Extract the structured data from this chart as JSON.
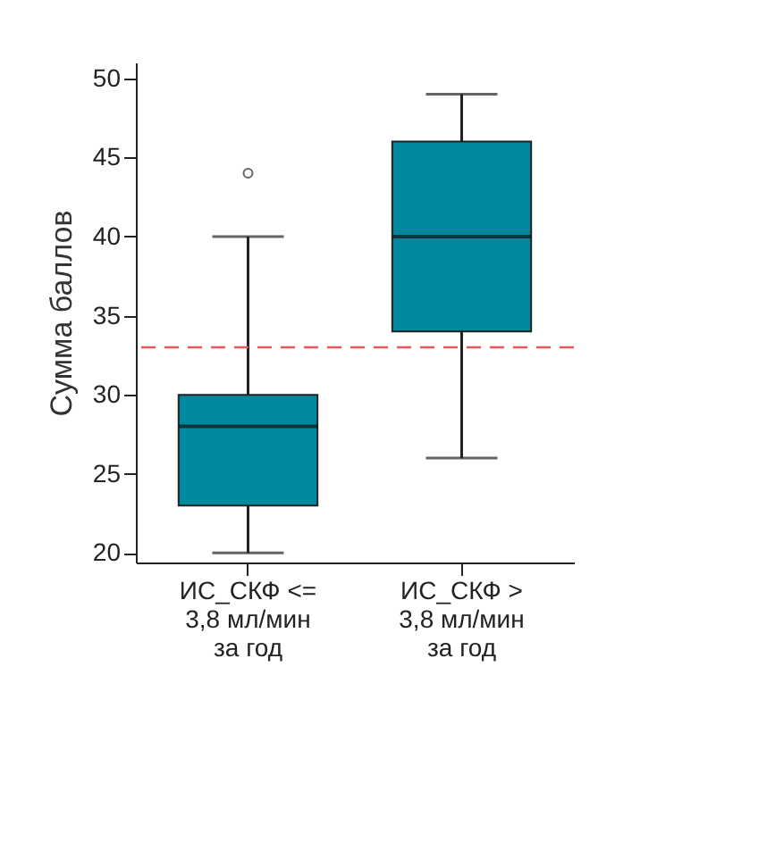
{
  "chart_data": {
    "type": "box",
    "ylabel": "Сумма баллов",
    "categories": [
      "ИС_СКФ <=\n3,8 мл/мин\nза год",
      "ИС_СКФ >\n3,8 мл/мин\nза год"
    ],
    "boxes": [
      {
        "low": 20,
        "q1": 23,
        "median": 28,
        "q3": 30,
        "high": 40,
        "outliers": [
          44
        ]
      },
      {
        "low": 26,
        "q1": 34,
        "median": 40,
        "q3": 46,
        "high": 49
      }
    ],
    "color": "#00889f",
    "ylim": [
      19.4,
      51
    ],
    "yticks": [
      20,
      25,
      30,
      35,
      40,
      45,
      50
    ],
    "grid": false,
    "ref_lines": [
      {
        "axis": "y",
        "value": 33,
        "color": "#e8555a",
        "line_style": "dashed"
      }
    ]
  }
}
